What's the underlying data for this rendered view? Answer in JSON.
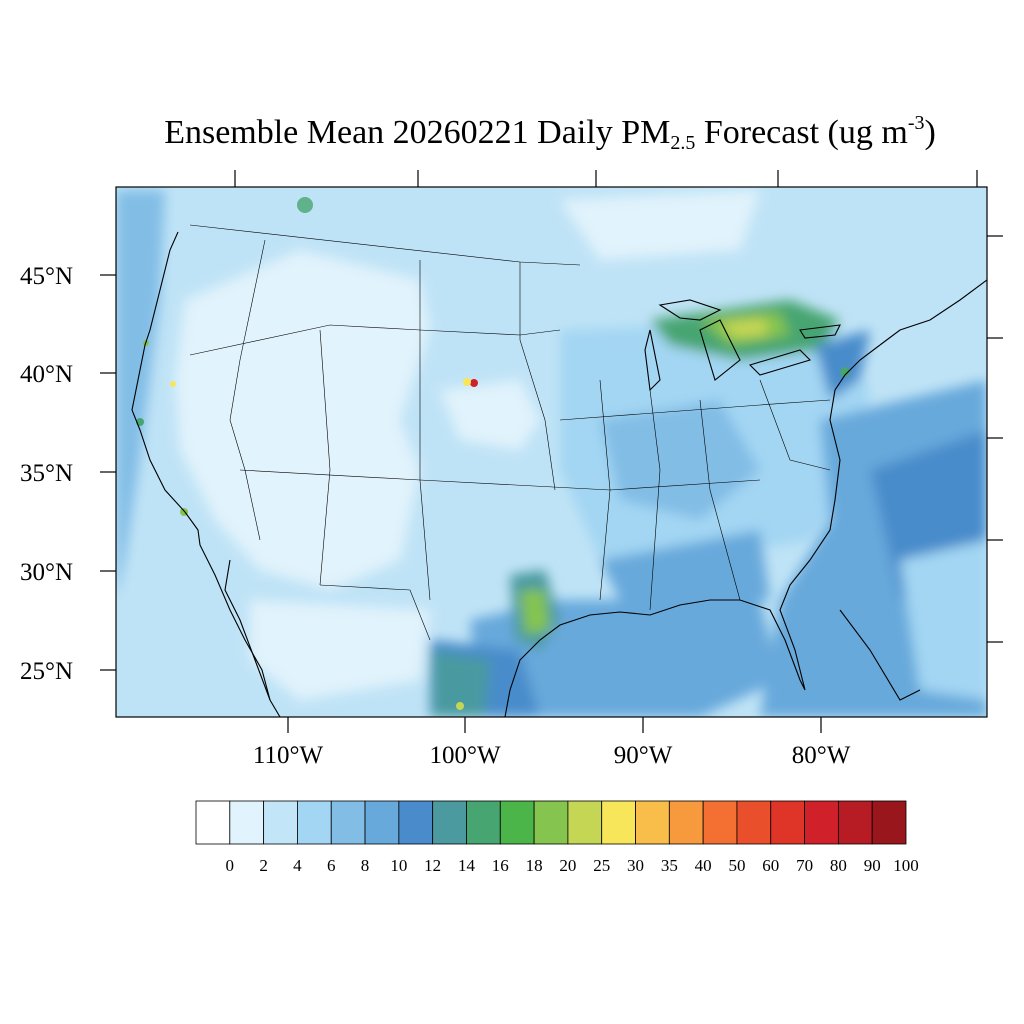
{
  "title": {
    "prefix": "Ensemble Mean 20260221 Daily PM",
    "subscript": "2.5",
    "middle": " Forecast (ug m",
    "superscript": "-3",
    "suffix": ")"
  },
  "axes": {
    "lat_labels": [
      "45°N",
      "40°N",
      "35°N",
      "30°N",
      "25°N"
    ],
    "lon_labels": [
      "110°W",
      "100°W",
      "90°W",
      "80°W"
    ]
  },
  "colorbar": {
    "levels": [
      "0",
      "2",
      "4",
      "6",
      "8",
      "10",
      "12",
      "14",
      "16",
      "18",
      "20",
      "25",
      "30",
      "35",
      "40",
      "50",
      "60",
      "70",
      "80",
      "90",
      "100"
    ],
    "colors": [
      "#ffffff",
      "#e1f3fc",
      "#c2e6f7",
      "#a3d6f3",
      "#82bde6",
      "#68a9db",
      "#4a8ccb",
      "#4a9aa0",
      "#47a571",
      "#4bb54a",
      "#85c44e",
      "#c5d655",
      "#f8e65a",
      "#f9be4a",
      "#f79a3d",
      "#f36f32",
      "#ea4f2c",
      "#df3428",
      "#d0202a",
      "#b71b23",
      "#9a161d"
    ]
  },
  "map": {
    "background_color": "#bfe3f6",
    "land_light_color": "#e1f3fc",
    "hotspot_colors": [
      "#68a9db",
      "#4a8ccb",
      "#47a571",
      "#85c44e",
      "#c5d655",
      "#f8e65a",
      "#d0202a"
    ]
  }
}
